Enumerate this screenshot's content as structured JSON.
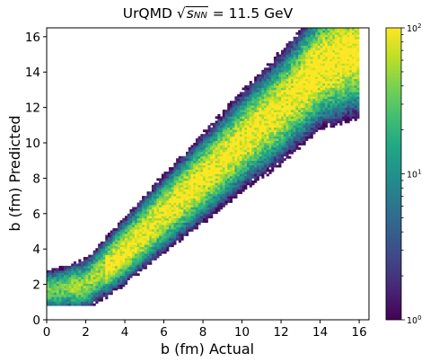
{
  "chart_data": {
    "type": "heatmap",
    "title_prefix": "UrQMD",
    "title_sqrt_symbol": "√",
    "title_sqrt_main": "s",
    "title_sqrt_sub": "NN",
    "title_suffix": " = 11.5 GeV",
    "xlabel": "b (fm) Actual",
    "ylabel": "b (fm) Predicted",
    "xlim": [
      0,
      16.5
    ],
    "ylim": [
      0,
      16.5
    ],
    "xticks": [
      0,
      2,
      4,
      6,
      8,
      10,
      12,
      14,
      16
    ],
    "yticks": [
      0,
      2,
      4,
      6,
      8,
      10,
      12,
      14,
      16
    ],
    "colormap": "viridis",
    "colorbar_scale": "log",
    "colorbar_range": [
      1,
      100
    ],
    "colorbar_labels": [
      {
        "base": "10",
        "exp": "0"
      },
      {
        "base": "10",
        "exp": "1"
      },
      {
        "base": "10",
        "exp": "2"
      }
    ],
    "density_ridge": {
      "x": [
        0.5,
        2,
        4,
        6,
        8,
        10,
        12,
        14,
        15.8
      ],
      "y": [
        1.7,
        2.0,
        3.9,
        6.0,
        8.0,
        10.1,
        12.0,
        14.3,
        15.2
      ]
    },
    "x_range_of_data": [
      0,
      15.9
    ],
    "y_range_of_data": [
      0.8,
      16.4
    ]
  }
}
